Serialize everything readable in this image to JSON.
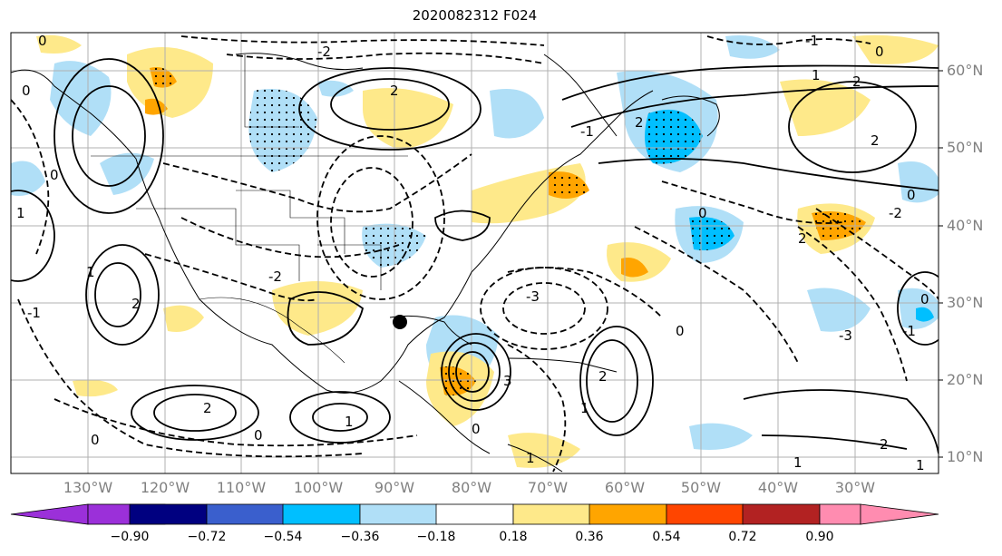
{
  "title": "2020082312 F024",
  "map": {
    "projection": "Plate Carree",
    "extent_lon": [
      -139,
      -18
    ],
    "extent_lat": [
      7,
      65
    ],
    "marker": {
      "type": "dot",
      "color": "#000000",
      "lon": -90.3,
      "lat": 27.7
    }
  },
  "lat_labels": [
    "10°N",
    "20°N",
    "30°N",
    "40°N",
    "50°N",
    "60°N"
  ],
  "lon_labels": [
    "130°W",
    "120°W",
    "110°W",
    "100°W",
    "90°W",
    "80°W",
    "70°W",
    "60°W",
    "50°W",
    "40°W",
    "30°W"
  ],
  "colorbar": {
    "ticks": [
      "−0.90",
      "−0.72",
      "−0.54",
      "−0.36",
      "−0.18",
      "0.18",
      "0.36",
      "0.54",
      "0.72",
      "0.90"
    ],
    "colors": [
      "#9b30d9",
      "#000080",
      "#3a5fcd",
      "#00bfff",
      "#b0dff7",
      "#ffffff",
      "#fee98a",
      "#ffa500",
      "#ff4500",
      "#b22222",
      "#ff8cb0"
    ]
  },
  "contour_labels": [
    "0",
    "1",
    "2",
    "-1",
    "-2",
    "-3",
    "3"
  ]
}
